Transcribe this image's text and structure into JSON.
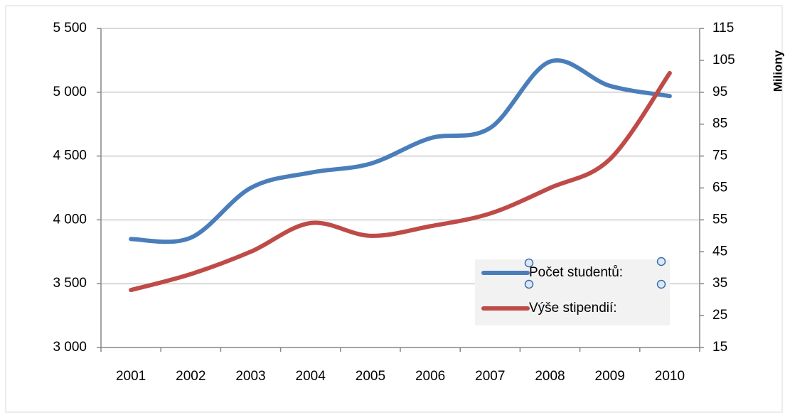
{
  "chart_data": {
    "type": "line",
    "y2_label": "Miliony",
    "categories": [
      "2001",
      "2002",
      "2003",
      "2004",
      "2005",
      "2006",
      "2007",
      "2008",
      "2009",
      "2010"
    ],
    "series": [
      {
        "name": "Počet studentů:",
        "color": "#4a7ebb",
        "values": [
          3850,
          3860,
          4250,
          4370,
          4440,
          4640,
          4720,
          5240,
          5050,
          4970
        ]
      },
      {
        "name": "Výše stipendií:",
        "color": "#be4b48",
        "axis": "y2",
        "values": [
          33,
          38,
          45,
          54,
          50,
          53,
          57,
          65,
          74,
          101
        ]
      }
    ],
    "ylim": [
      3000,
      5500
    ],
    "yticks": [
      {
        "value": 3000,
        "label": "3 000"
      },
      {
        "value": 3500,
        "label": "3 500"
      },
      {
        "value": 4000,
        "label": "4 000"
      },
      {
        "value": 4500,
        "label": "4 500"
      },
      {
        "value": 5000,
        "label": "5 000"
      },
      {
        "value": 5500,
        "label": "5 500"
      }
    ],
    "y2lim": [
      15,
      115
    ],
    "y2ticks": [
      15,
      25,
      35,
      45,
      55,
      65,
      75,
      85,
      95,
      105,
      115
    ],
    "grid": true,
    "smooth": true,
    "legend": "lower right"
  }
}
